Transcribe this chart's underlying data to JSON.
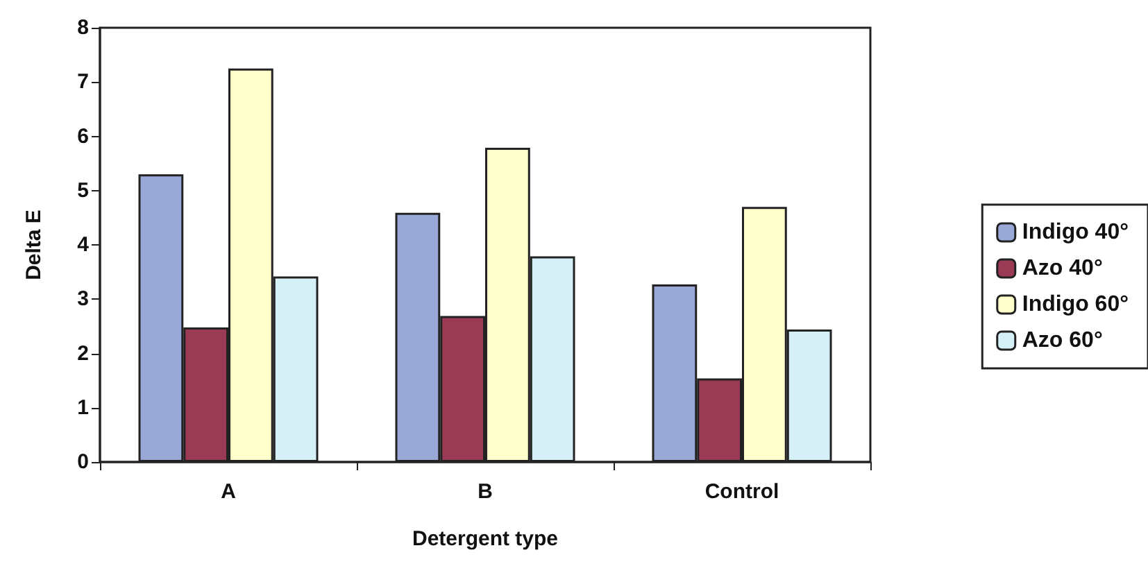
{
  "chart_data": {
    "type": "bar",
    "xlabel": "Detergent type",
    "ylabel": "Delta E",
    "categories": [
      "A",
      "B",
      "Control"
    ],
    "series": [
      {
        "name": "Indigo 40°",
        "color": "#9aa8d8",
        "values": [
          5.3,
          4.59,
          3.27
        ]
      },
      {
        "name": "Azo 40°",
        "color": "#9b3a55",
        "values": [
          2.48,
          2.69,
          1.54
        ]
      },
      {
        "name": "Indigo 60°",
        "color": "#ffffcc",
        "values": [
          7.25,
          5.79,
          4.7
        ]
      },
      {
        "name": "Azo 60°",
        "color": "#d6f0f8",
        "values": [
          3.42,
          3.79,
          2.44
        ]
      }
    ],
    "ylim": [
      0,
      8
    ],
    "yticks": [
      0,
      1,
      2,
      3,
      4,
      5,
      6,
      7,
      8
    ],
    "grid": false,
    "legend": "right"
  }
}
